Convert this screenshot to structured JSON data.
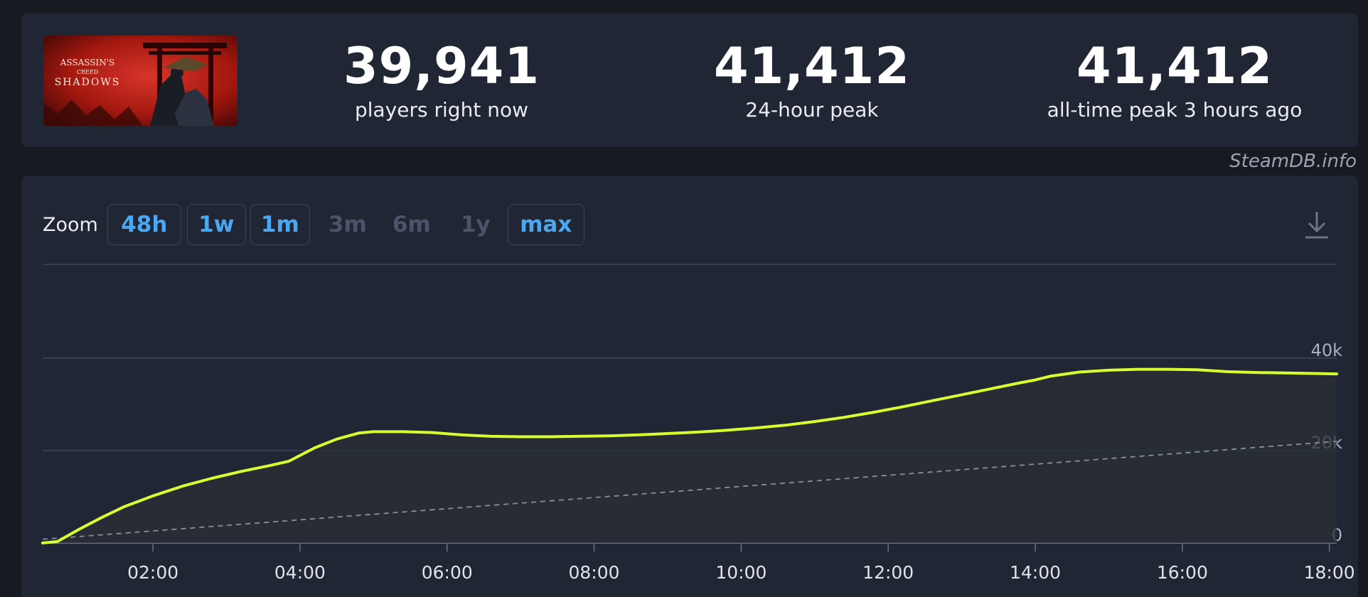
{
  "game": {
    "cover_title_line1": "ASSASSIN'S",
    "cover_title_line2": "CREED",
    "cover_title_line3": "SHADOWS"
  },
  "stats": [
    {
      "value": "39,941",
      "label": "players right now"
    },
    {
      "value": "41,412",
      "label": "24-hour peak"
    },
    {
      "value": "41,412",
      "label": "all-time peak 3 hours ago"
    }
  ],
  "watermark": "SteamDB.info",
  "zoom": {
    "label": "Zoom",
    "options": [
      {
        "label": "48h",
        "enabled": true
      },
      {
        "label": "1w",
        "enabled": true
      },
      {
        "label": "1m",
        "enabled": true
      },
      {
        "label": "3m",
        "enabled": false
      },
      {
        "label": "6m",
        "enabled": false
      },
      {
        "label": "1y",
        "enabled": false
      },
      {
        "label": "max",
        "enabled": true
      }
    ]
  },
  "download_icon": "download-icon",
  "colors": {
    "line": "#d8ff2f",
    "trend": "#8a8f98",
    "accent": "#4aa8f2",
    "panel": "#202634",
    "background": "#171a21"
  },
  "chart_data": {
    "type": "area",
    "x_tick_labels": [
      "02:00",
      "04:00",
      "06:00",
      "08:00",
      "10:00",
      "12:00",
      "14:00",
      "16:00",
      "18:00"
    ],
    "y_tick_labels": [
      "0",
      "20k",
      "40k"
    ],
    "ylim": [
      0,
      60000
    ],
    "xlim": [
      0.5,
      18.1
    ],
    "grid": true,
    "series": [
      {
        "x": [
          0.5,
          0.7,
          1.0,
          1.3,
          1.6,
          2.0,
          2.4,
          2.8,
          3.2,
          3.6,
          3.85,
          4.2,
          4.5,
          4.8,
          5.0,
          5.4,
          5.8,
          6.2,
          6.6,
          7.0,
          7.4,
          7.8,
          8.2,
          8.6,
          9.0,
          9.4,
          9.8,
          10.2,
          10.6,
          11.0,
          11.4,
          11.8,
          12.2,
          12.6,
          13.0,
          13.4,
          13.8,
          14.0,
          14.2,
          14.6,
          15.0,
          15.4,
          15.8,
          16.2,
          16.6,
          17.0,
          17.4,
          17.8,
          18.1
        ],
        "y": [
          0,
          300,
          3000,
          5500,
          7800,
          10200,
          12300,
          14000,
          15500,
          16800,
          17700,
          20600,
          22500,
          23800,
          24100,
          24100,
          23900,
          23400,
          23100,
          23000,
          23000,
          23100,
          23200,
          23400,
          23700,
          24000,
          24400,
          24900,
          25500,
          26300,
          27200,
          28300,
          29500,
          30800,
          32100,
          33400,
          34700,
          35300,
          36100,
          37000,
          37400,
          37600,
          37600,
          37500,
          37100,
          36900,
          36800,
          36700,
          36600
        ]
      },
      {
        "x": [
          0.5,
          18.1
        ],
        "y": [
          800,
          22000
        ]
      }
    ]
  }
}
